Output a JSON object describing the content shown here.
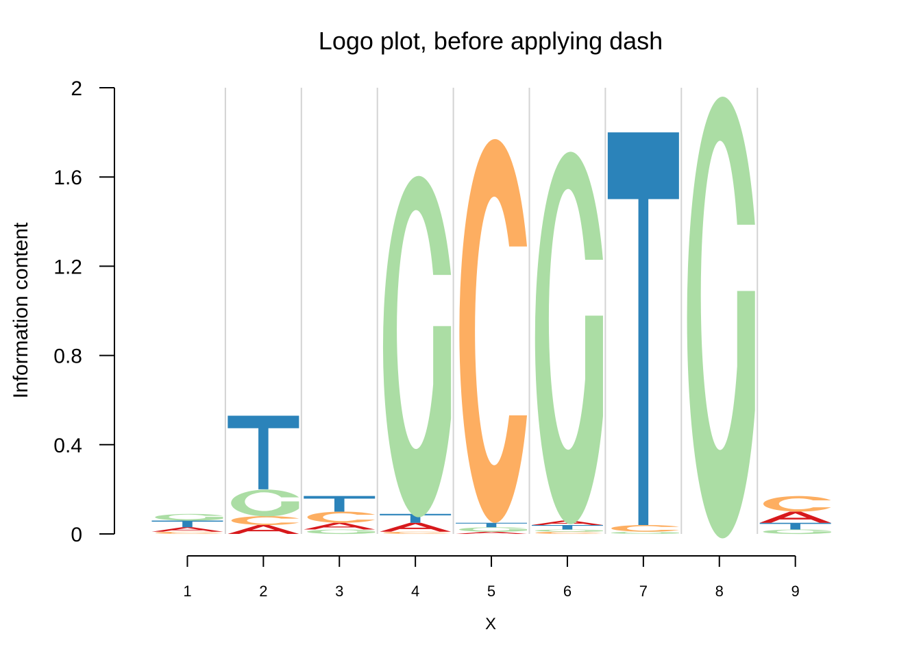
{
  "chart_data": {
    "type": "logo",
    "title": "Logo plot, before applying dash",
    "xlabel": "X",
    "ylabel": "Information content",
    "ylim": [
      0,
      2
    ],
    "yticks": [
      0,
      0.4,
      0.8,
      1.2,
      1.6,
      2
    ],
    "ytick_labels": [
      "0",
      "0.4",
      "0.8",
      "1.2",
      "1.6",
      "2"
    ],
    "positions": [
      "1",
      "2",
      "3",
      "4",
      "5",
      "6",
      "7",
      "8",
      "9"
    ],
    "colors": {
      "A": "#d7191c",
      "C": "#fdae61",
      "G": "#abdda4",
      "T": "#2b83ba"
    },
    "stacks": [
      [
        {
          "letter": "C",
          "value": 0.01
        },
        {
          "letter": "A",
          "value": 0.02
        },
        {
          "letter": "T",
          "value": 0.03
        },
        {
          "letter": "G",
          "value": 0.03
        }
      ],
      [
        {
          "letter": "A",
          "value": 0.04
        },
        {
          "letter": "C",
          "value": 0.04
        },
        {
          "letter": "G",
          "value": 0.12
        },
        {
          "letter": "T",
          "value": 0.33
        }
      ],
      [
        {
          "letter": "G",
          "value": 0.02
        },
        {
          "letter": "A",
          "value": 0.03
        },
        {
          "letter": "C",
          "value": 0.05
        },
        {
          "letter": "T",
          "value": 0.07
        }
      ],
      [
        {
          "letter": "C",
          "value": 0.01
        },
        {
          "letter": "A",
          "value": 0.04
        },
        {
          "letter": "T",
          "value": 0.04
        },
        {
          "letter": "G",
          "value": 1.53
        }
      ],
      [
        {
          "letter": "A",
          "value": 0.01
        },
        {
          "letter": "G",
          "value": 0.02
        },
        {
          "letter": "T",
          "value": 0.02
        },
        {
          "letter": "C",
          "value": 1.72
        }
      ],
      [
        {
          "letter": "C",
          "value": 0.01
        },
        {
          "letter": "G",
          "value": 0.01
        },
        {
          "letter": "T",
          "value": 0.02
        },
        {
          "letter": "A",
          "value": 0.02
        },
        {
          "letter": "G",
          "value": 1.67
        }
      ],
      [
        {
          "letter": "G",
          "value": 0.01
        },
        {
          "letter": "C",
          "value": 0.03
        },
        {
          "letter": "T",
          "value": 1.76
        }
      ],
      [
        {
          "letter": "G",
          "value": 1.98
        }
      ],
      [
        {
          "letter": "G",
          "value": 0.02
        },
        {
          "letter": "T",
          "value": 0.03
        },
        {
          "letter": "A",
          "value": 0.05
        },
        {
          "letter": "C",
          "value": 0.07
        }
      ]
    ]
  }
}
